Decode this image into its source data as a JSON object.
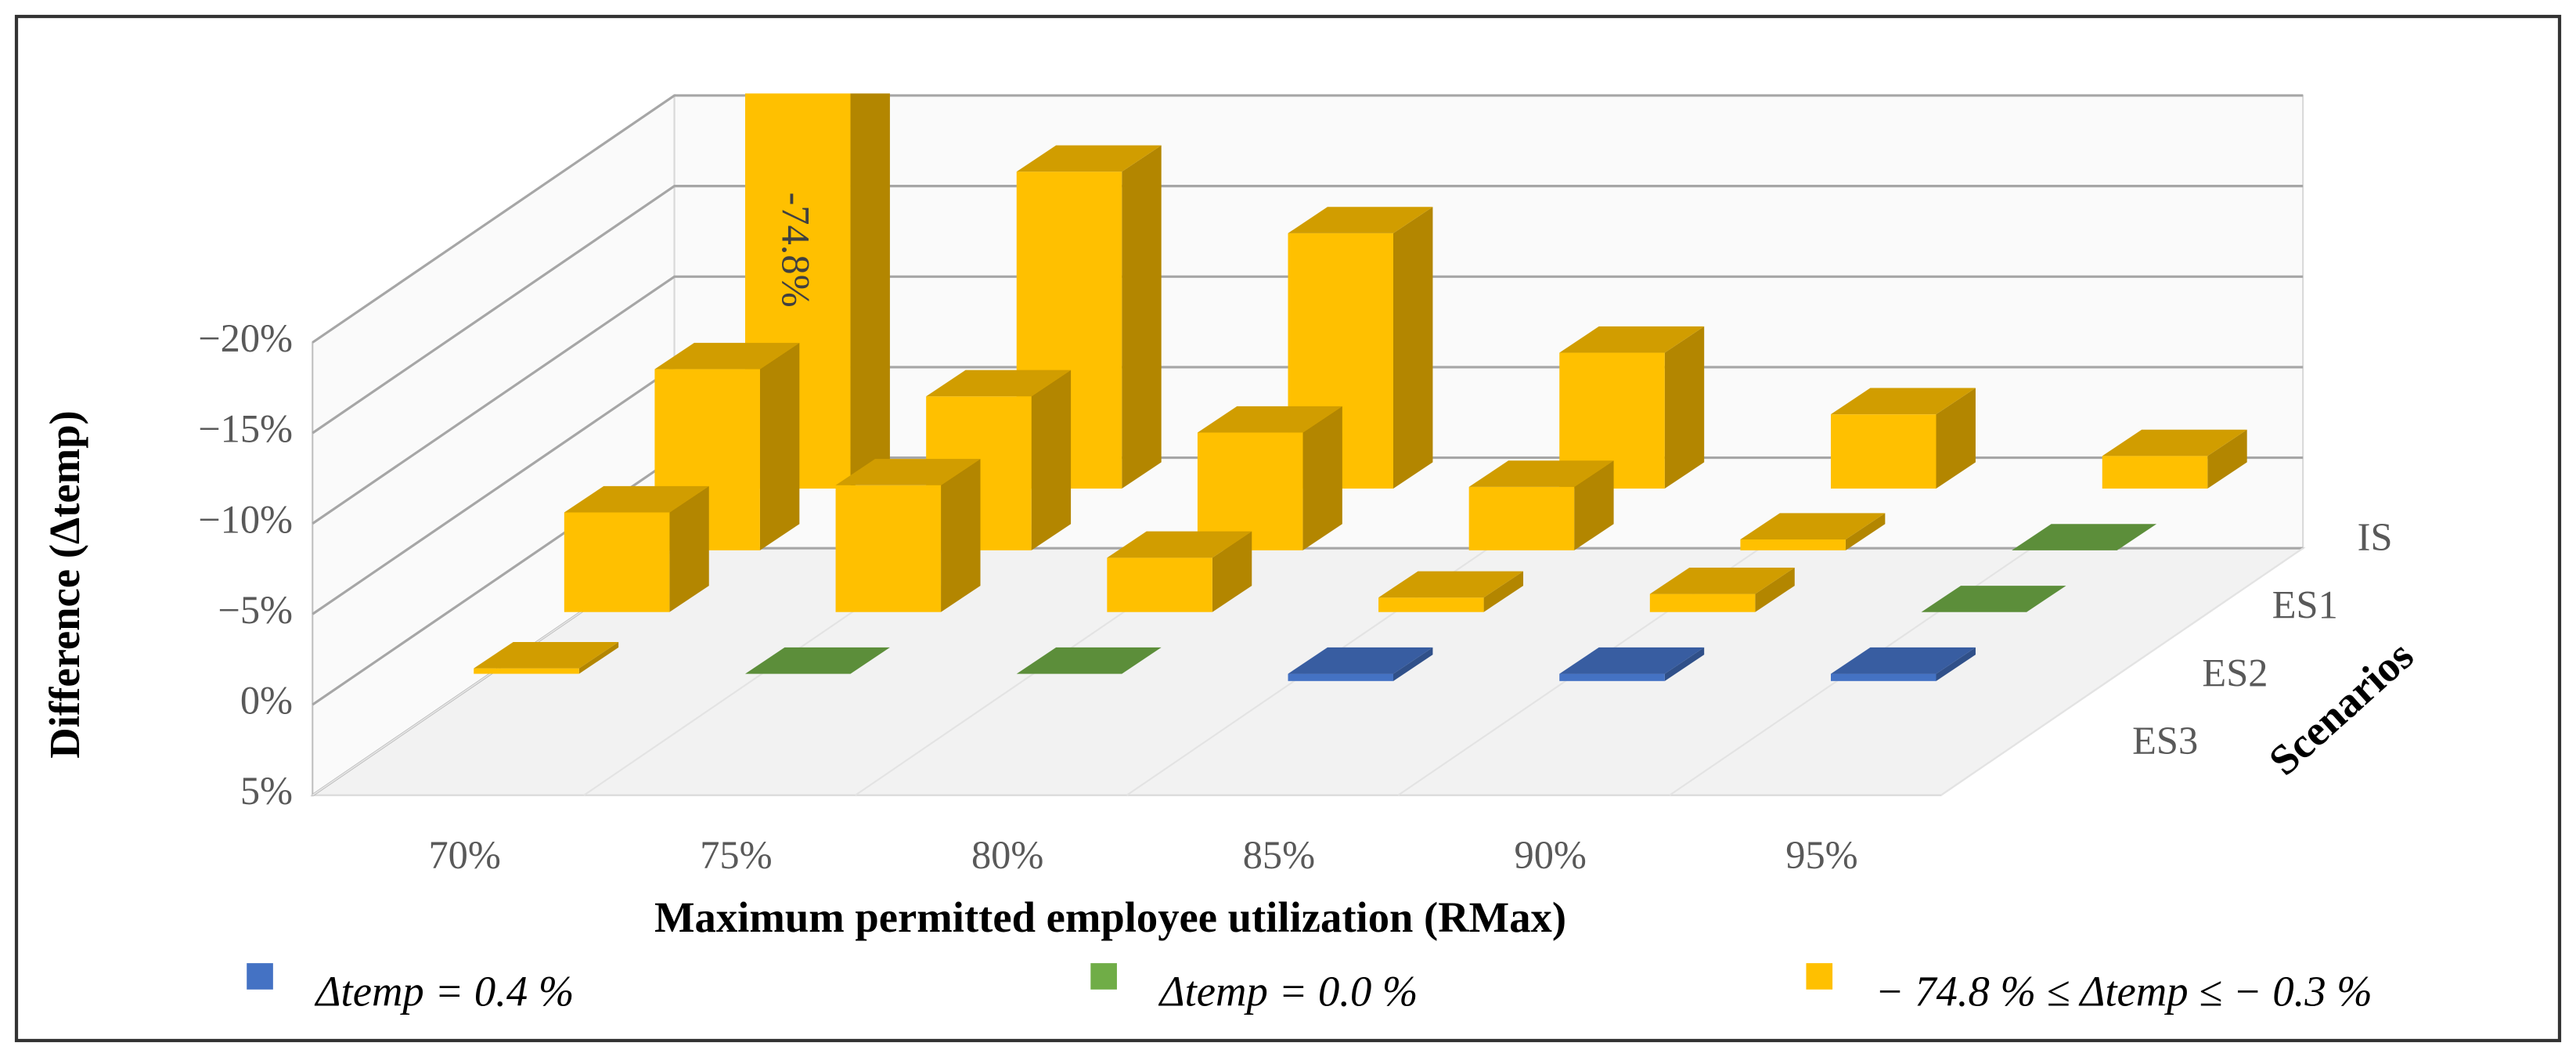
{
  "chart_data": {
    "type": "bar3d",
    "y_label": "Difference (Δtemp)",
    "x_label": "Maximum permitted employee utilization (RMax)",
    "z_label": "Scenarios",
    "categories": [
      "70%",
      "75%",
      "80%",
      "85%",
      "90%",
      "95%"
    ],
    "ylim": [
      -20,
      5
    ],
    "yticks": [
      {
        "value": -20,
        "label": "−20%"
      },
      {
        "value": -15,
        "label": "−15%"
      },
      {
        "value": -10,
        "label": "−10%"
      },
      {
        "value": -5,
        "label": "−5%"
      },
      {
        "value": 0,
        "label": "0%"
      },
      {
        "value": 5,
        "label": "5%"
      }
    ],
    "y_reversed": true,
    "grid": true,
    "legend": [
      {
        "label": "Δtemp  = 0.4 %",
        "color": "#4472c4"
      },
      {
        "label": "Δtemp = 0.0 %",
        "color": "#70ad47"
      },
      {
        "label": "− 74.8 % ≤ Δtemp ≤ − 0.3 %",
        "color": "#ffc000"
      }
    ],
    "series": [
      {
        "name": "IS",
        "values": [
          -74.8,
          -17.5,
          -14.1,
          -7.5,
          -4.1,
          -1.8
        ],
        "value_labels": [
          "-74.8%",
          null,
          null,
          null,
          null,
          null
        ],
        "colors": [
          "#ffc000",
          "#ffc000",
          "#ffc000",
          "#ffc000",
          "#ffc000",
          "#ffc000"
        ]
      },
      {
        "name": "ES1",
        "values": [
          -10,
          -8.5,
          -6.5,
          -3.5,
          -0.6,
          0
        ],
        "colors": [
          "#ffc000",
          "#ffc000",
          "#ffc000",
          "#ffc000",
          "#ffc000",
          "#70ad47"
        ]
      },
      {
        "name": "ES2",
        "values": [
          -5.5,
          -7,
          -3,
          -0.8,
          -1,
          0
        ],
        "colors": [
          "#ffc000",
          "#ffc000",
          "#ffc000",
          "#ffc000",
          "#ffc000",
          "#70ad47"
        ]
      },
      {
        "name": "ES3",
        "values": [
          -0.3,
          0,
          0,
          0.4,
          0.4,
          0.4
        ],
        "colors": [
          "#ffc000",
          "#70ad47",
          "#70ad47",
          "#4472c4",
          "#4472c4",
          "#4472c4"
        ]
      }
    ]
  }
}
